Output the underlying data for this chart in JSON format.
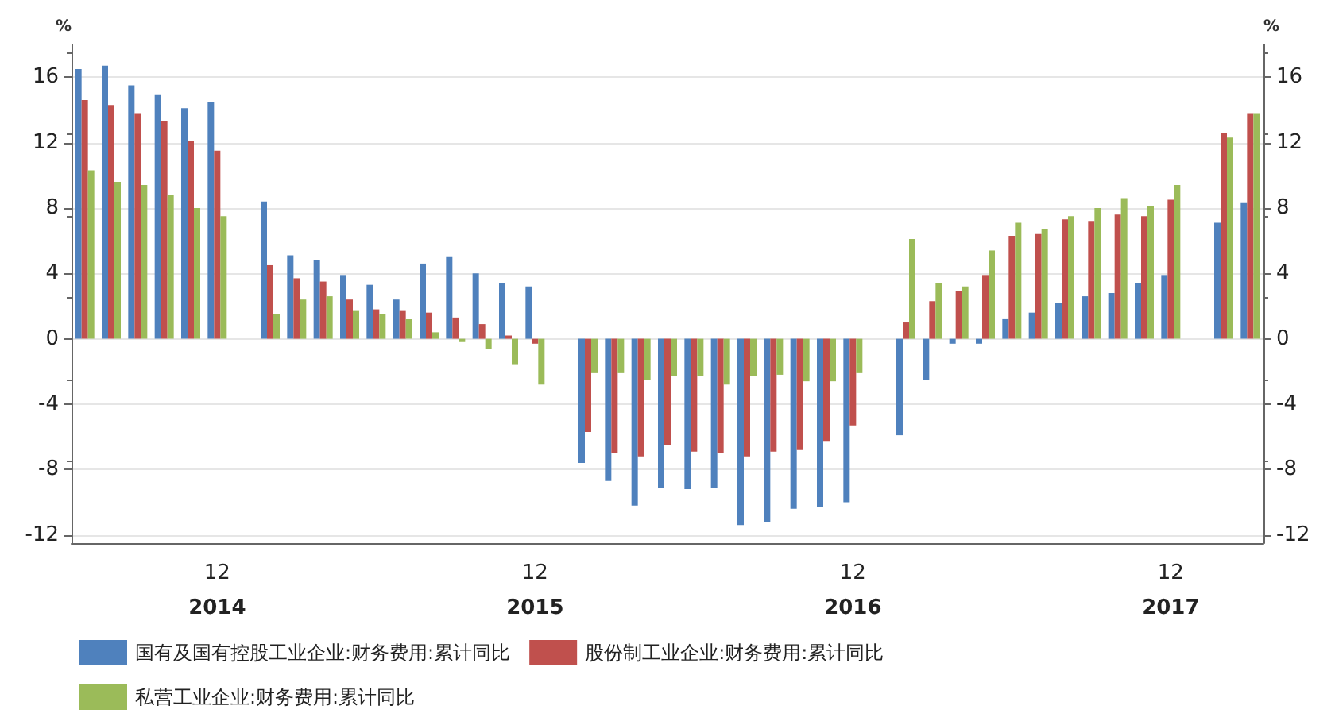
{
  "chart_data": {
    "type": "bar",
    "ylabel": "%",
    "y2label": "%",
    "categories": [
      null,
      null,
      null,
      null,
      null,
      "12\n2014",
      null,
      null,
      null,
      null,
      null,
      null,
      null,
      null,
      null,
      null,
      null,
      "12\n2015",
      null,
      null,
      null,
      null,
      null,
      null,
      null,
      null,
      null,
      null,
      null,
      "12\n2016",
      null,
      null,
      null,
      null,
      null,
      null,
      null,
      null,
      null,
      null,
      null,
      "12\n2017",
      null,
      null,
      null
    ],
    "series": [
      {
        "name": "国有及国有控股工业企业:财务费用:累计同比",
        "color": "#4f81bd",
        "values": [
          16.5,
          16.7,
          15.5,
          14.9,
          14.1,
          14.5,
          null,
          8.4,
          5.1,
          4.8,
          3.9,
          3.3,
          2.4,
          4.6,
          5.0,
          4.0,
          3.4,
          3.2,
          null,
          -7.6,
          -8.7,
          -10.2,
          -9.1,
          -9.2,
          -9.1,
          -11.4,
          -11.2,
          -10.4,
          -10.3,
          -10.0,
          null,
          -5.9,
          -2.5,
          -0.3,
          -0.3,
          1.2,
          1.6,
          2.2,
          2.6,
          2.8,
          3.4,
          3.9,
          null,
          7.1,
          8.3
        ]
      },
      {
        "name": "股份制工业企业:财务费用:累计同比",
        "color": "#c0504d",
        "values": [
          14.6,
          14.3,
          13.8,
          13.3,
          12.1,
          11.5,
          null,
          4.5,
          3.7,
          3.5,
          2.4,
          1.8,
          1.7,
          1.6,
          1.3,
          0.9,
          0.2,
          -0.3,
          null,
          -5.7,
          -7.0,
          -7.2,
          -6.5,
          -6.9,
          -7.0,
          -7.2,
          -6.9,
          -6.8,
          -6.3,
          -5.3,
          null,
          1.0,
          2.3,
          2.9,
          3.9,
          6.3,
          6.4,
          7.3,
          7.2,
          7.6,
          7.5,
          8.5,
          null,
          12.6,
          13.8
        ]
      },
      {
        "name": "私营工业企业:财务费用:累计同比",
        "color": "#9bbb59",
        "values": [
          10.3,
          9.6,
          9.4,
          8.8,
          8.0,
          7.5,
          null,
          1.5,
          2.4,
          2.6,
          1.7,
          1.5,
          1.2,
          0.4,
          -0.2,
          -0.6,
          -1.6,
          -2.8,
          null,
          -2.1,
          -2.1,
          -2.5,
          -2.3,
          -2.3,
          -2.8,
          -2.3,
          -2.2,
          -2.6,
          -2.6,
          -2.1,
          null,
          6.1,
          3.4,
          3.2,
          5.4,
          7.1,
          6.7,
          7.5,
          8.0,
          8.6,
          8.1,
          9.4,
          null,
          12.3,
          13.8
        ]
      }
    ],
    "ylim": [
      -12.5,
      18
    ],
    "yticks": [
      -12,
      -8,
      -4,
      0,
      4,
      8,
      12,
      16
    ],
    "y2lim": [
      -12.5,
      18
    ],
    "y2ticks": [
      -12,
      -8,
      -4,
      0,
      4,
      8,
      12,
      16
    ],
    "grid": "y",
    "legend": "bottom left"
  }
}
